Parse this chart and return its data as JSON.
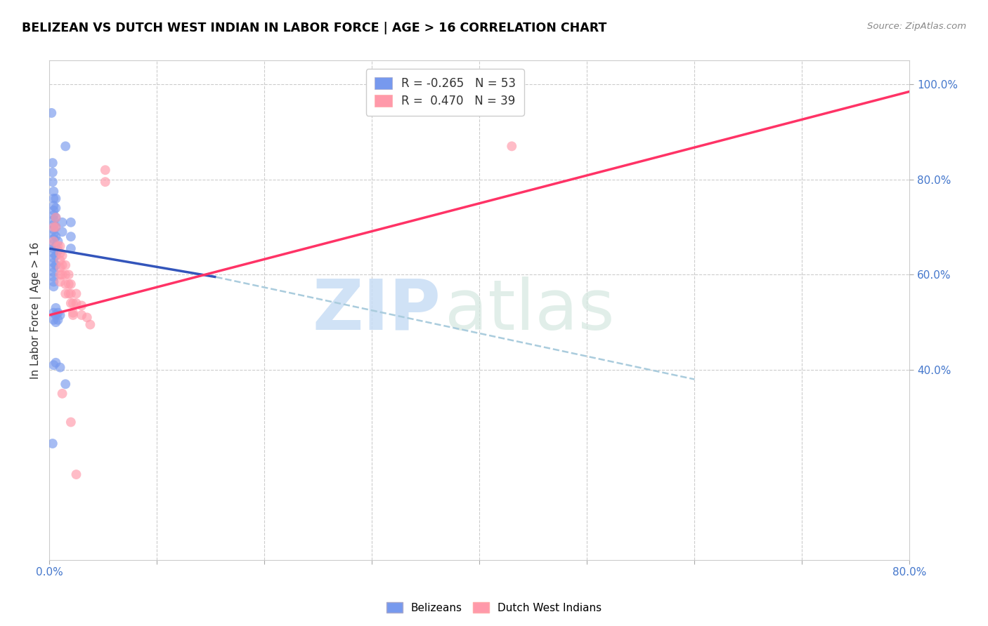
{
  "title": "BELIZEAN VS DUTCH WEST INDIAN IN LABOR FORCE | AGE > 16 CORRELATION CHART",
  "source": "Source: ZipAtlas.com",
  "ylabel": "In Labor Force | Age > 16",
  "xlim": [
    0.0,
    0.8
  ],
  "ylim": [
    0.0,
    1.05
  ],
  "belizean_color": "#7799ee",
  "dutch_color": "#ff99aa",
  "belizean_line_color": "#3355bb",
  "dutch_line_color": "#ff3366",
  "dashed_line_color": "#aaccdd",
  "belizean_r": -0.265,
  "belizean_n": 53,
  "dutch_r": 0.47,
  "dutch_n": 39,
  "watermark_zip": "ZIP",
  "watermark_atlas": "atlas",
  "grid_color": "#cccccc",
  "blue_line_solid": [
    [
      0.0,
      0.655
    ],
    [
      0.155,
      0.595
    ]
  ],
  "blue_line_dashed": [
    [
      0.155,
      0.595
    ],
    [
      0.6,
      0.38
    ]
  ],
  "pink_line": [
    [
      0.0,
      0.515
    ],
    [
      0.8,
      0.985
    ]
  ],
  "belizean_points": [
    [
      0.002,
      0.94
    ],
    [
      0.003,
      0.835
    ],
    [
      0.003,
      0.815
    ],
    [
      0.003,
      0.795
    ],
    [
      0.004,
      0.775
    ],
    [
      0.004,
      0.76
    ],
    [
      0.004,
      0.745
    ],
    [
      0.004,
      0.735
    ],
    [
      0.004,
      0.725
    ],
    [
      0.004,
      0.715
    ],
    [
      0.004,
      0.705
    ],
    [
      0.004,
      0.695
    ],
    [
      0.004,
      0.685
    ],
    [
      0.004,
      0.675
    ],
    [
      0.004,
      0.665
    ],
    [
      0.004,
      0.655
    ],
    [
      0.004,
      0.645
    ],
    [
      0.004,
      0.635
    ],
    [
      0.004,
      0.625
    ],
    [
      0.004,
      0.615
    ],
    [
      0.004,
      0.605
    ],
    [
      0.004,
      0.595
    ],
    [
      0.004,
      0.585
    ],
    [
      0.004,
      0.575
    ],
    [
      0.006,
      0.76
    ],
    [
      0.006,
      0.74
    ],
    [
      0.006,
      0.72
    ],
    [
      0.006,
      0.7
    ],
    [
      0.006,
      0.68
    ],
    [
      0.006,
      0.66
    ],
    [
      0.006,
      0.64
    ],
    [
      0.006,
      0.62
    ],
    [
      0.008,
      0.67
    ],
    [
      0.008,
      0.65
    ],
    [
      0.012,
      0.71
    ],
    [
      0.012,
      0.69
    ],
    [
      0.015,
      0.87
    ],
    [
      0.02,
      0.71
    ],
    [
      0.02,
      0.68
    ],
    [
      0.02,
      0.655
    ],
    [
      0.004,
      0.52
    ],
    [
      0.004,
      0.505
    ],
    [
      0.006,
      0.53
    ],
    [
      0.006,
      0.515
    ],
    [
      0.006,
      0.5
    ],
    [
      0.008,
      0.52
    ],
    [
      0.008,
      0.505
    ],
    [
      0.01,
      0.515
    ],
    [
      0.004,
      0.41
    ],
    [
      0.006,
      0.415
    ],
    [
      0.01,
      0.405
    ],
    [
      0.003,
      0.245
    ],
    [
      0.015,
      0.37
    ]
  ],
  "dutch_points": [
    [
      0.004,
      0.7
    ],
    [
      0.004,
      0.67
    ],
    [
      0.006,
      0.72
    ],
    [
      0.006,
      0.7
    ],
    [
      0.008,
      0.66
    ],
    [
      0.01,
      0.66
    ],
    [
      0.01,
      0.645
    ],
    [
      0.01,
      0.63
    ],
    [
      0.01,
      0.615
    ],
    [
      0.01,
      0.6
    ],
    [
      0.01,
      0.585
    ],
    [
      0.012,
      0.64
    ],
    [
      0.012,
      0.62
    ],
    [
      0.012,
      0.6
    ],
    [
      0.015,
      0.62
    ],
    [
      0.015,
      0.6
    ],
    [
      0.015,
      0.58
    ],
    [
      0.015,
      0.56
    ],
    [
      0.018,
      0.6
    ],
    [
      0.018,
      0.58
    ],
    [
      0.018,
      0.56
    ],
    [
      0.02,
      0.58
    ],
    [
      0.02,
      0.56
    ],
    [
      0.02,
      0.54
    ],
    [
      0.022,
      0.54
    ],
    [
      0.022,
      0.52
    ],
    [
      0.025,
      0.56
    ],
    [
      0.025,
      0.54
    ],
    [
      0.03,
      0.535
    ],
    [
      0.03,
      0.515
    ],
    [
      0.035,
      0.51
    ],
    [
      0.038,
      0.495
    ],
    [
      0.052,
      0.82
    ],
    [
      0.052,
      0.795
    ],
    [
      0.43,
      0.87
    ],
    [
      0.012,
      0.35
    ],
    [
      0.02,
      0.29
    ],
    [
      0.022,
      0.515
    ],
    [
      0.025,
      0.18
    ]
  ]
}
